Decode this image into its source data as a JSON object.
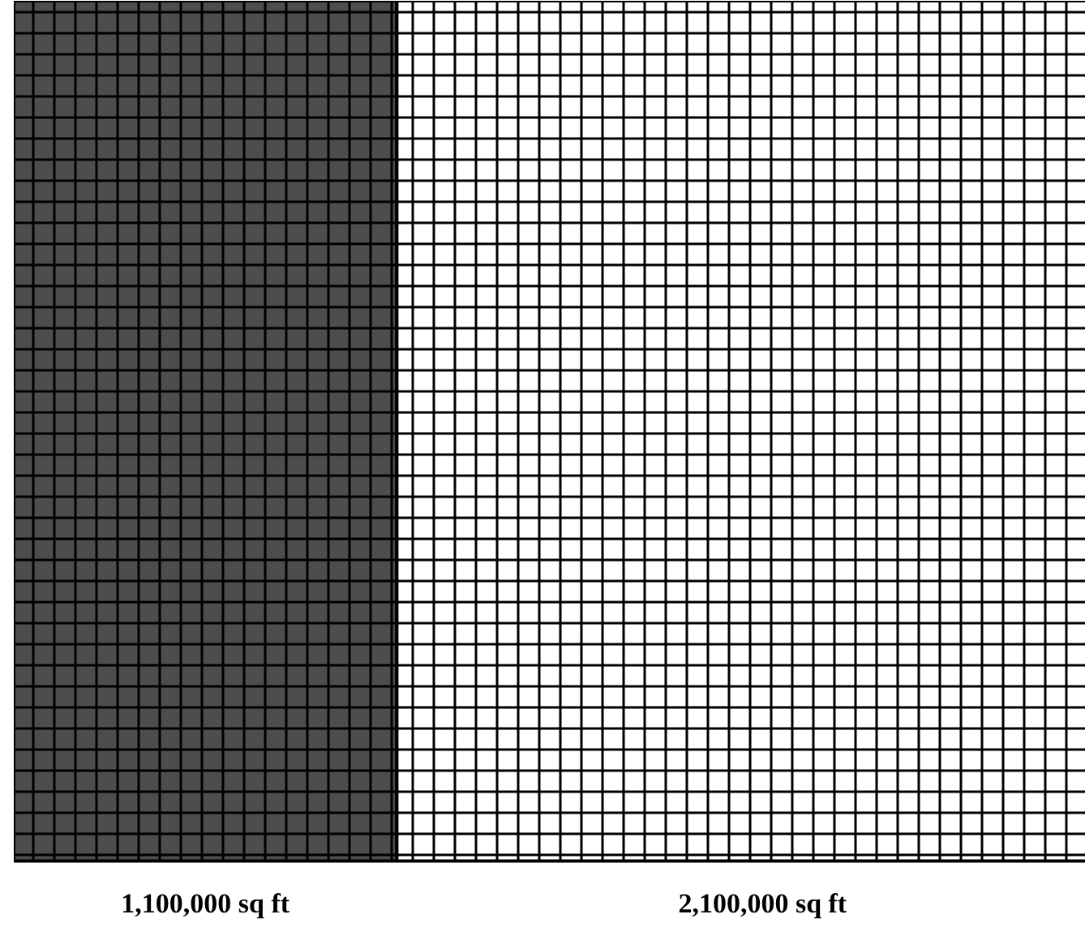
{
  "chart_data": {
    "type": "other",
    "values": [
      1100000,
      2100000
    ],
    "value_labels": [
      "1,100,000 sq ft",
      "2,100,000 sq ft"
    ],
    "colors": [
      "#4d4d4d",
      "#ffffff"
    ]
  }
}
